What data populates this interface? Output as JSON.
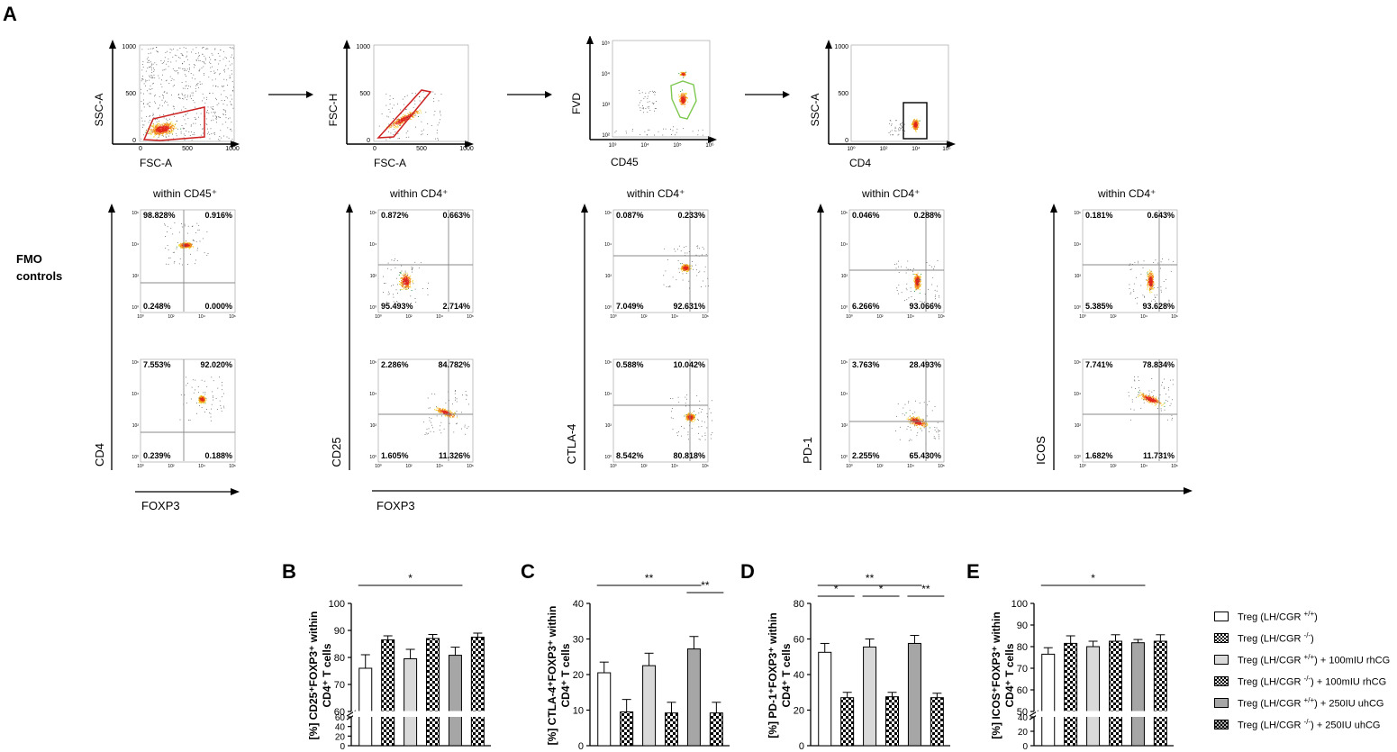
{
  "panel_letters": {
    "A": "A",
    "B": "B",
    "C": "C",
    "D": "D",
    "E": "E"
  },
  "gating": {
    "plot1": {
      "ylabel": "SSC-A",
      "xlabel": "FSC-A",
      "yticks": [
        "1000",
        "500",
        "0"
      ],
      "xticks": [
        "0",
        "500",
        "1000"
      ]
    },
    "plot2": {
      "ylabel": "FSC-H",
      "xlabel": "FSC-A",
      "yticks": [
        "1000",
        "500",
        "0"
      ],
      "xticks": [
        "0",
        "500",
        "1000"
      ]
    },
    "plot3": {
      "ylabel": "FVD",
      "xlabel": "CD45",
      "yticks": [
        "10⁵",
        "10⁴",
        "10³",
        "10²"
      ],
      "xticks": [
        "10³",
        "10⁴",
        "10⁵",
        "10⁶"
      ]
    },
    "plot4": {
      "ylabel": "SSC-A",
      "xlabel": "CD4",
      "yticks": [
        "1000",
        "500",
        "0"
      ],
      "xticks": [
        "10⁰",
        "10²",
        "10⁴",
        "10⁶"
      ]
    }
  },
  "fmo_label": [
    "FMO",
    "controls"
  ],
  "within_labels": [
    "within CD45⁺",
    "within CD4⁺",
    "within CD4⁺",
    "within CD4⁺",
    "within CD4⁺"
  ],
  "marker_labels": {
    "cd4": "CD4",
    "cd25": "CD25",
    "ctla4": "CTLA-4",
    "pd1": "PD-1",
    "icos": "ICOS",
    "foxp3_a": "FOXP3",
    "foxp3_b": "FOXP3"
  },
  "quadrants": [
    {
      "fmo": [
        "98.828%",
        "0.916%",
        "0.248%",
        "0.000%"
      ],
      "stain": [
        "7.553%",
        "92.020%",
        "0.239%",
        "0.188%"
      ]
    },
    {
      "fmo": [
        "0.872%",
        "0.663%",
        "95.493%",
        "2.714%"
      ],
      "stain": [
        "2.286%",
        "84.782%",
        "1.605%",
        "11.326%"
      ]
    },
    {
      "fmo": [
        "0.087%",
        "0.233%",
        "7.049%",
        "92.631%"
      ],
      "stain": [
        "0.588%",
        "10.042%",
        "8.542%",
        "80.818%"
      ]
    },
    {
      "fmo": [
        "0.046%",
        "0.288%",
        "6.266%",
        "93.066%"
      ],
      "stain": [
        "3.763%",
        "28.493%",
        "2.255%",
        "65.430%"
      ]
    },
    {
      "fmo": [
        "0.181%",
        "0.643%",
        "5.385%",
        "93.628%"
      ],
      "stain": [
        "7.741%",
        "78.834%",
        "1.682%",
        "11.731%"
      ]
    }
  ],
  "quad_ticks": [
    "10⁰",
    "10²",
    "10⁴",
    "10⁶"
  ],
  "chart_data": [
    {
      "type": "bar",
      "panel": "B",
      "ylabel": "[%] CD25⁺FOXP3⁺ within CD4⁺ T cells",
      "ylim": [
        60,
        100
      ],
      "yticks": [
        "60",
        "70",
        "80",
        "90",
        "100"
      ],
      "lower_ticks": [
        "60",
        "40",
        "20",
        "0"
      ],
      "values": [
        76,
        86.5,
        79.5,
        87,
        80.8,
        87.5
      ],
      "errors": [
        5,
        1.5,
        3.5,
        1.5,
        3,
        1.5
      ],
      "brackets": [
        {
          "from": 0,
          "to": 4,
          "label": "*"
        }
      ]
    },
    {
      "type": "bar",
      "panel": "C",
      "ylabel": "[%] CTLA-4⁺FOXP3⁺ within CD4⁺ T cells",
      "ylim": [
        0,
        40
      ],
      "yticks": [
        "0",
        "10",
        "20",
        "30",
        "40"
      ],
      "values": [
        20.5,
        9.5,
        22.5,
        9.2,
        27.2,
        9.2
      ],
      "errors": [
        3,
        3.5,
        3.5,
        3,
        3.5,
        3
      ],
      "brackets": [
        {
          "from": 0,
          "to": 4,
          "label": "**"
        },
        {
          "from": 4,
          "to": 5,
          "label": "**"
        }
      ]
    },
    {
      "type": "bar",
      "panel": "D",
      "ylabel": "[%] PD-1⁺FOXP3⁺ within CD4⁺ T cells",
      "ylim": [
        0,
        80
      ],
      "yticks": [
        "0",
        "20",
        "40",
        "60",
        "80"
      ],
      "values": [
        52.5,
        27,
        55.5,
        27.5,
        57.5,
        27
      ],
      "errors": [
        5,
        3,
        4.5,
        2.5,
        4.5,
        2.5
      ],
      "brackets": [
        {
          "from": 0,
          "to": 4,
          "label": "**"
        },
        {
          "from": 0,
          "to": 1,
          "label": "*"
        },
        {
          "from": 2,
          "to": 3,
          "label": "*"
        },
        {
          "from": 4,
          "to": 5,
          "label": "**"
        }
      ]
    },
    {
      "type": "bar",
      "panel": "E",
      "ylabel": "[%] ICOS⁺FOXP3⁺ within CD4⁺ T cells",
      "ylim": [
        50,
        100
      ],
      "yticks": [
        "50",
        "60",
        "70",
        "80",
        "90",
        "100"
      ],
      "lower_ticks": [
        "40",
        "20",
        "0"
      ],
      "values": [
        76.5,
        81.5,
        80,
        82.5,
        81.8,
        82.5
      ],
      "errors": [
        3,
        3.5,
        2.5,
        3,
        1.5,
        3
      ],
      "brackets": [
        {
          "from": 0,
          "to": 4,
          "label": "*"
        }
      ]
    }
  ],
  "legend": [
    {
      "base": "Treg (LH/CGR ",
      "sup": "+/+",
      "rest": ")",
      "fill": "#ffffff",
      "pattern": false
    },
    {
      "base": "Treg (LH/CGR ",
      "sup": "-/-",
      "rest": ")",
      "fill": "#ffffff",
      "pattern": true
    },
    {
      "base": "Treg (LH/CGR ",
      "sup": "+/+",
      "rest": ") + 100mIU rhCG",
      "fill": "#d9d9d9",
      "pattern": false
    },
    {
      "base": "Treg (LH/CGR ",
      "sup": "-/-",
      "rest": ") + 100mIU rhCG",
      "fill": "#d9d9d9",
      "pattern": true
    },
    {
      "base": "Treg (LH/CGR ",
      "sup": "+/+",
      "rest": ") + 250IU uhCG",
      "fill": "#a6a6a6",
      "pattern": false
    },
    {
      "base": "Treg (LH/CGR ",
      "sup": "-/-",
      "rest": ") + 250IU uhCG",
      "fill": "#a6a6a6",
      "pattern": true
    }
  ],
  "colors": {
    "gate_red": "#cc2222",
    "gate_green": "#7ec850",
    "grid": "#888888",
    "bar_white": "#ffffff",
    "bar_light": "#d9d9d9",
    "bar_dark": "#a6a6a6"
  }
}
